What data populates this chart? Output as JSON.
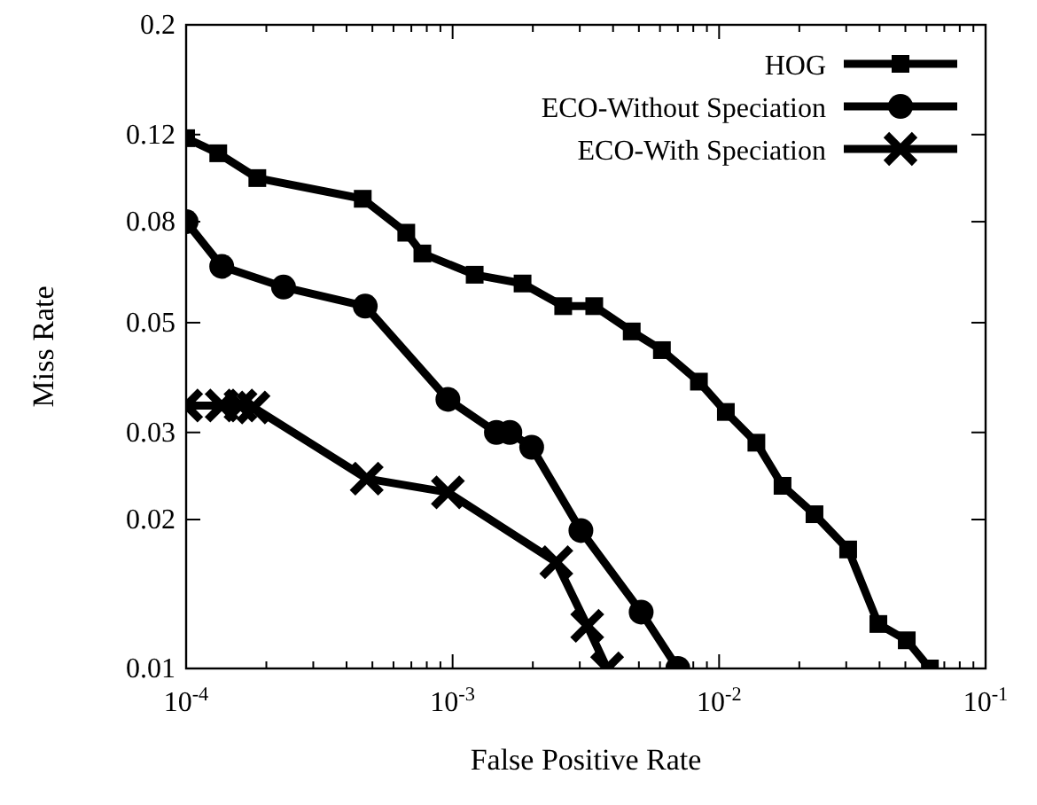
{
  "chart_data": {
    "type": "line",
    "xlabel": "False Positive Rate",
    "ylabel": "Miss Rate",
    "log": "xy",
    "xlim": [
      0.0001,
      0.1
    ],
    "ylim": [
      0.01,
      0.2
    ],
    "xticks": [
      {
        "value": 0.0001,
        "label": "10$^{-4}$"
      },
      {
        "value": 0.0002,
        "label": null
      },
      {
        "value": 0.0003,
        "label": null
      },
      {
        "value": 0.0004,
        "label": null
      },
      {
        "value": 0.0005,
        "label": null
      },
      {
        "value": 0.0006,
        "label": null
      },
      {
        "value": 0.0007,
        "label": null
      },
      {
        "value": 0.0008,
        "label": null
      },
      {
        "value": 0.0009,
        "label": null
      },
      {
        "value": 0.001,
        "label": "10$^{-3}$"
      },
      {
        "value": 0.002,
        "label": null
      },
      {
        "value": 0.003,
        "label": null
      },
      {
        "value": 0.004,
        "label": null
      },
      {
        "value": 0.005,
        "label": null
      },
      {
        "value": 0.006,
        "label": null
      },
      {
        "value": 0.007,
        "label": null
      },
      {
        "value": 0.008,
        "label": null
      },
      {
        "value": 0.009,
        "label": null
      },
      {
        "value": 0.01,
        "label": "10$^{-2}$"
      },
      {
        "value": 0.02,
        "label": null
      },
      {
        "value": 0.03,
        "label": null
      },
      {
        "value": 0.04,
        "label": null
      },
      {
        "value": 0.05,
        "label": null
      },
      {
        "value": 0.06,
        "label": null
      },
      {
        "value": 0.07,
        "label": null
      },
      {
        "value": 0.08,
        "label": null
      },
      {
        "value": 0.09,
        "label": null
      },
      {
        "value": 0.1,
        "label": "10$^{-1}$"
      }
    ],
    "yticks": [
      0.01,
      0.02,
      0.03,
      0.05,
      0.08,
      0.12,
      0.2
    ],
    "grid": false,
    "legend": "top right",
    "line_style": "solid",
    "series": [
      {
        "name": "HOG",
        "color": "#000000",
        "marker": "square",
        "x": [
          0.0001,
          0.000132,
          0.000185,
          0.00046,
          0.00067,
          0.00077,
          0.00121,
          0.00183,
          0.0026,
          0.0034,
          0.0047,
          0.0061,
          0.0084,
          0.0106,
          0.0138,
          0.0173,
          0.0228,
          0.0305,
          0.0396,
          0.0506,
          0.0618
        ],
        "values": [
          0.118,
          0.11,
          0.098,
          0.089,
          0.076,
          0.069,
          0.0625,
          0.06,
          0.054,
          0.054,
          0.048,
          0.044,
          0.038,
          0.033,
          0.0286,
          0.0234,
          0.0205,
          0.0174,
          0.0123,
          0.0114,
          0.01
        ]
      },
      {
        "name": "ECO-Without Speciation",
        "color": "#000000",
        "marker": "circle",
        "x": [
          0.0001,
          0.000136,
          0.000232,
          0.00047,
          0.00096,
          0.00146,
          0.00164,
          0.00198,
          0.00303,
          0.0051,
          0.007
        ],
        "values": [
          0.08,
          0.065,
          0.059,
          0.054,
          0.035,
          0.03,
          0.03,
          0.028,
          0.019,
          0.013,
          0.01
        ]
      },
      {
        "name": "ECO-With Speciation",
        "color": "#000000",
        "marker": "cross",
        "x": [
          0.0001,
          0.000136,
          0.00016,
          0.000179,
          0.000476,
          0.00096,
          0.00245,
          0.0032,
          0.0038
        ],
        "values": [
          0.034,
          0.034,
          0.034,
          0.0337,
          0.0242,
          0.0227,
          0.0164,
          0.0122,
          0.01
        ]
      }
    ]
  }
}
